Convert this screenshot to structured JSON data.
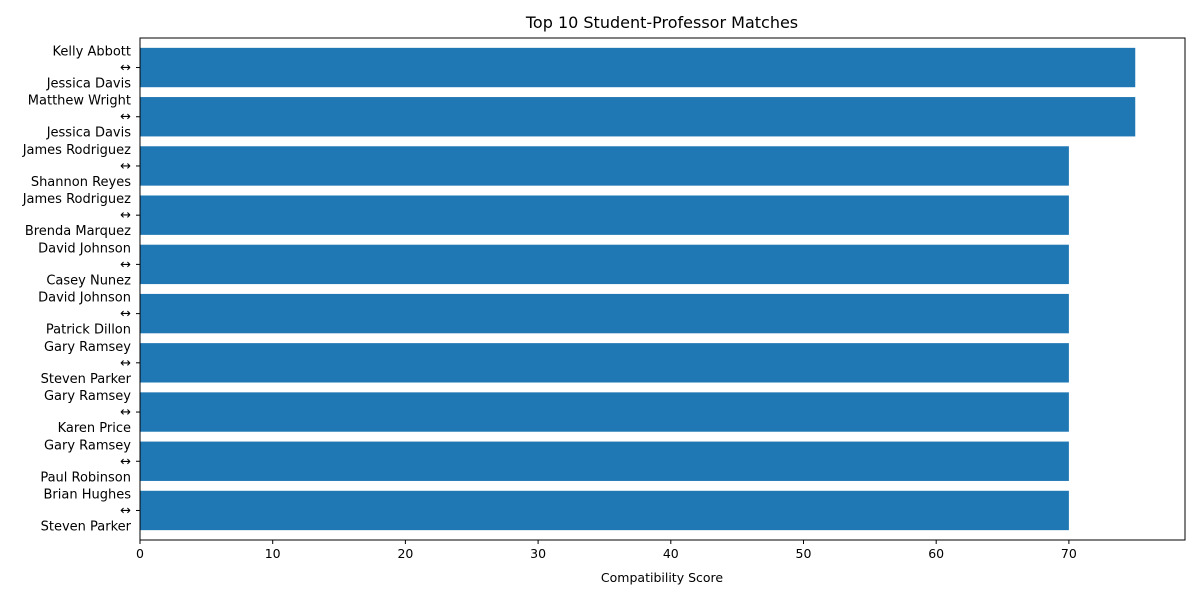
{
  "chart_data": {
    "type": "bar",
    "orientation": "horizontal",
    "title": "Top 10 Student-Professor Matches",
    "xlabel": "Compatibility Score",
    "ylabel": "",
    "xlim": [
      0,
      78.75
    ],
    "xticks": [
      0,
      10,
      20,
      30,
      40,
      50,
      60,
      70
    ],
    "bar_color": "#1f77b4",
    "grid": false,
    "categories": [
      "Kelly Abbott\n↔\nJessica Davis",
      "Matthew Wright\n↔\nJessica Davis",
      "James Rodriguez\n↔\nShannon Reyes",
      "James Rodriguez\n↔\nBrenda Marquez",
      "David Johnson\n↔\nCasey Nunez",
      "David Johnson\n↔\nPatrick Dillon",
      "Gary Ramsey\n↔\nSteven Parker",
      "Gary Ramsey\n↔\nKaren Price",
      "Gary Ramsey\n↔\nPaul Robinson",
      "Brian Hughes\n↔\nSteven Parker"
    ],
    "values": [
      75,
      75,
      70,
      70,
      70,
      70,
      70,
      70,
      70,
      70
    ]
  }
}
